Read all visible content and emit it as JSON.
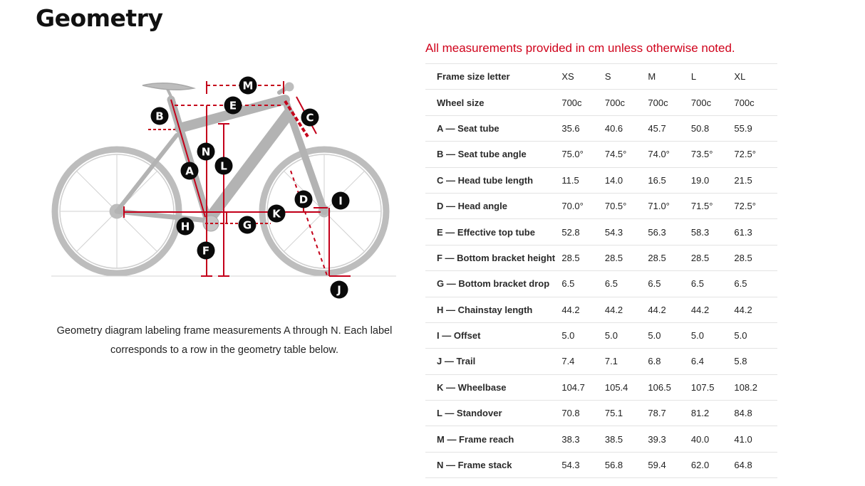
{
  "page": {
    "title": "Geometry",
    "note": "All measurements provided in cm unless otherwise noted.",
    "caption": "Geometry diagram labeling frame measurements A through N. Each label corresponds to a row in the geometry table below."
  },
  "diagram": {
    "labels": [
      "A",
      "B",
      "C",
      "D",
      "E",
      "F",
      "G",
      "H",
      "I",
      "J",
      "K",
      "L",
      "M",
      "N"
    ],
    "accent_color": "#c4001a"
  },
  "table": {
    "header": {
      "label": "Frame size letter",
      "sizes": [
        "XS",
        "S",
        "M",
        "L",
        "XL"
      ]
    },
    "rows": [
      {
        "label": "Wheel size",
        "values": [
          "700c",
          "700c",
          "700c",
          "700c",
          "700c"
        ]
      },
      {
        "label": "A — Seat tube",
        "values": [
          "35.6",
          "40.6",
          "45.7",
          "50.8",
          "55.9"
        ]
      },
      {
        "label": "B — Seat tube angle",
        "values": [
          "75.0°",
          "74.5°",
          "74.0°",
          "73.5°",
          "72.5°"
        ]
      },
      {
        "label": "C — Head tube length",
        "values": [
          "11.5",
          "14.0",
          "16.5",
          "19.0",
          "21.5"
        ]
      },
      {
        "label": "D — Head angle",
        "values": [
          "70.0°",
          "70.5°",
          "71.0°",
          "71.5°",
          "72.5°"
        ]
      },
      {
        "label": "E — Effective top tube",
        "values": [
          "52.8",
          "54.3",
          "56.3",
          "58.3",
          "61.3"
        ]
      },
      {
        "label": "F — Bottom bracket height",
        "values": [
          "28.5",
          "28.5",
          "28.5",
          "28.5",
          "28.5"
        ]
      },
      {
        "label": "G — Bottom bracket drop",
        "values": [
          "6.5",
          "6.5",
          "6.5",
          "6.5",
          "6.5"
        ]
      },
      {
        "label": "H — Chainstay length",
        "values": [
          "44.2",
          "44.2",
          "44.2",
          "44.2",
          "44.2"
        ]
      },
      {
        "label": "I — Offset",
        "values": [
          "5.0",
          "5.0",
          "5.0",
          "5.0",
          "5.0"
        ]
      },
      {
        "label": "J — Trail",
        "values": [
          "7.4",
          "7.1",
          "6.8",
          "6.4",
          "5.8"
        ]
      },
      {
        "label": "K — Wheelbase",
        "values": [
          "104.7",
          "105.4",
          "106.5",
          "107.5",
          "108.2"
        ]
      },
      {
        "label": "L — Standover",
        "values": [
          "70.8",
          "75.1",
          "78.7",
          "81.2",
          "84.8"
        ]
      },
      {
        "label": "M — Frame reach",
        "values": [
          "38.3",
          "38.5",
          "39.3",
          "40.0",
          "41.0"
        ]
      },
      {
        "label": "N — Frame stack",
        "values": [
          "54.3",
          "56.8",
          "59.4",
          "62.0",
          "64.8"
        ]
      }
    ]
  }
}
